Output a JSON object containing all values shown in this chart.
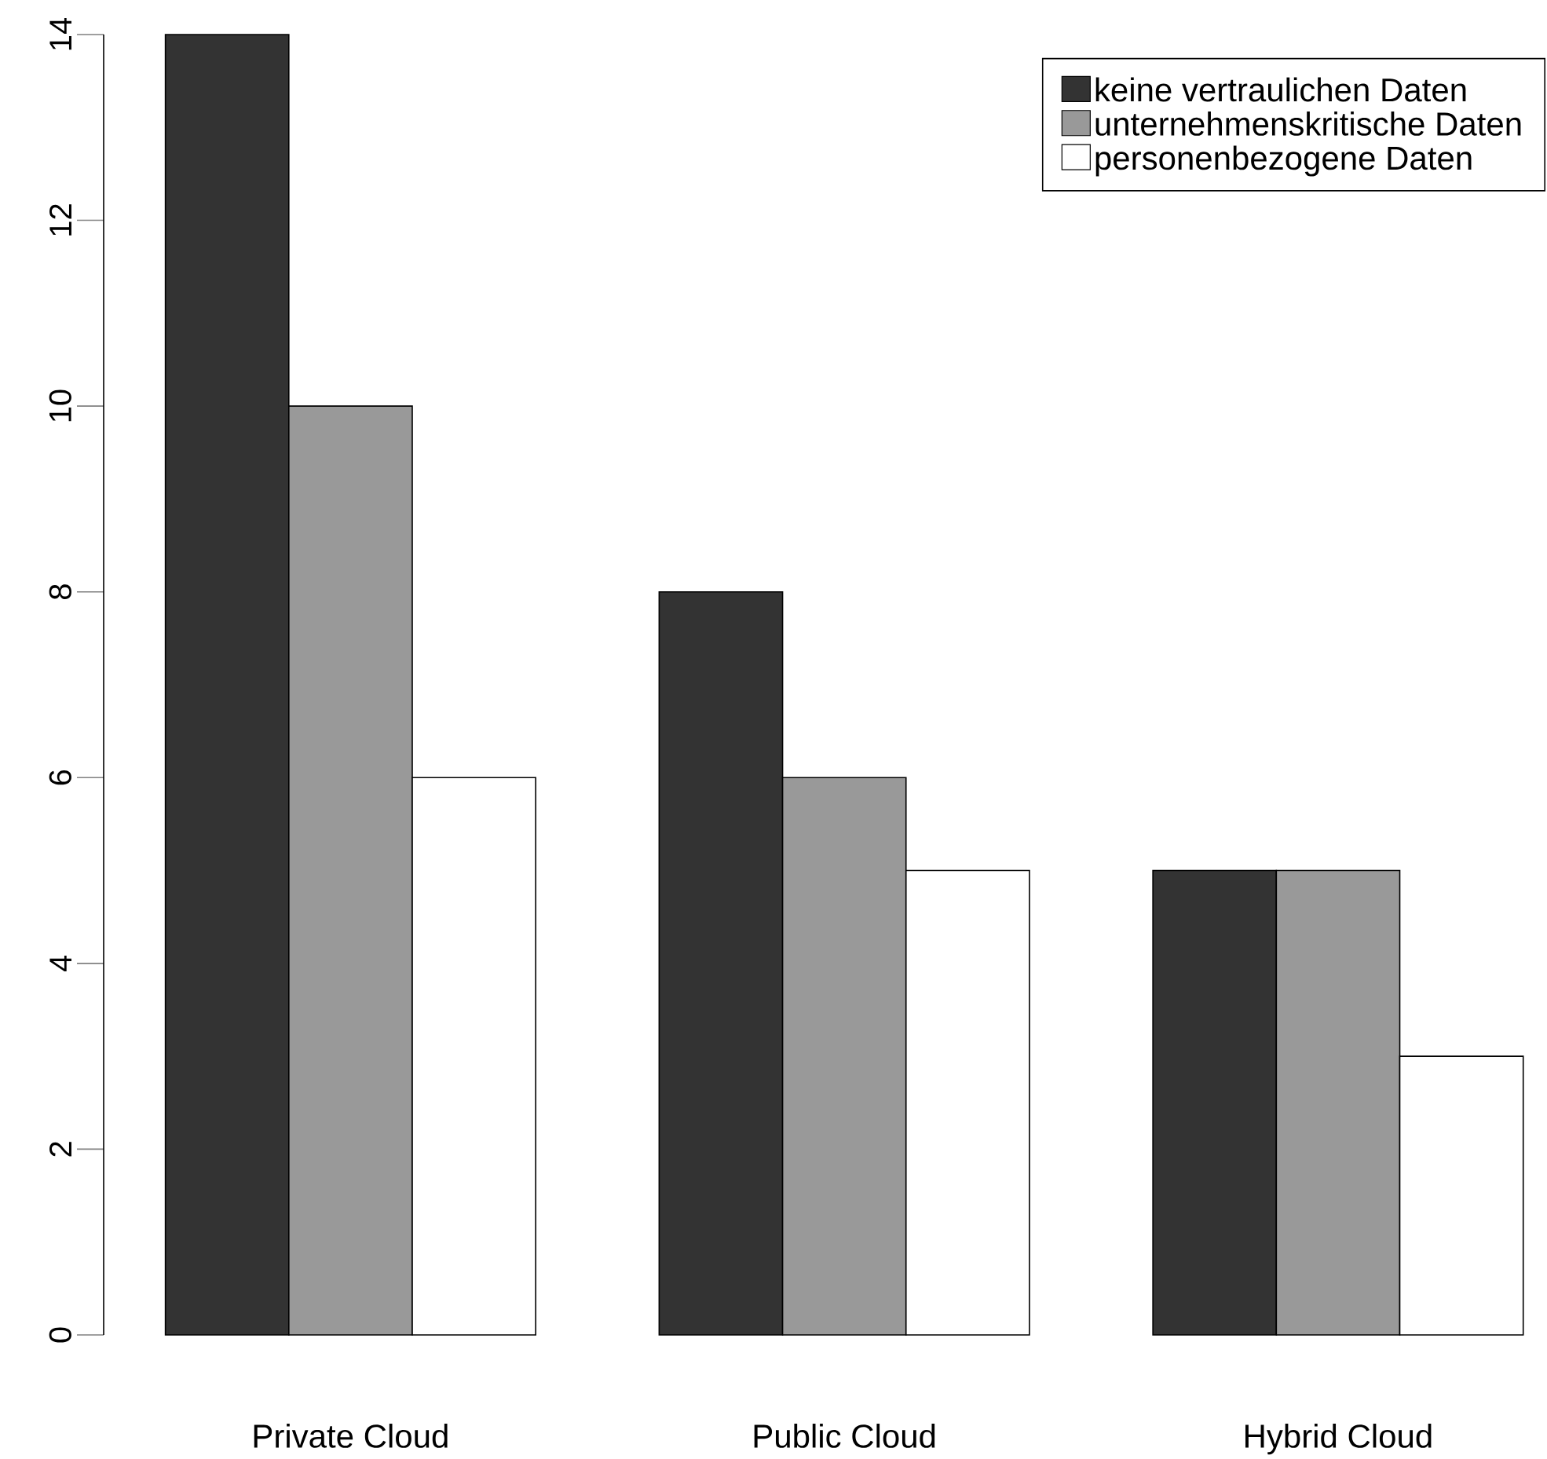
{
  "chart_data": {
    "type": "bar",
    "categories": [
      "Private Cloud",
      "Public Cloud",
      "Hybrid Cloud"
    ],
    "series": [
      {
        "name": "keine vertraulichen Daten",
        "color": "#333333",
        "values": [
          14,
          8,
          5
        ]
      },
      {
        "name": "unternehmenskritische Daten",
        "color": "#999999",
        "values": [
          10,
          6,
          5
        ]
      },
      {
        "name": "personenbezogene Daten",
        "color": "#ffffff",
        "values": [
          6,
          5,
          3
        ]
      }
    ],
    "ylim": [
      0,
      14
    ],
    "yticks": [
      0,
      2,
      4,
      6,
      8,
      10,
      12,
      14
    ],
    "legend": "top right"
  }
}
